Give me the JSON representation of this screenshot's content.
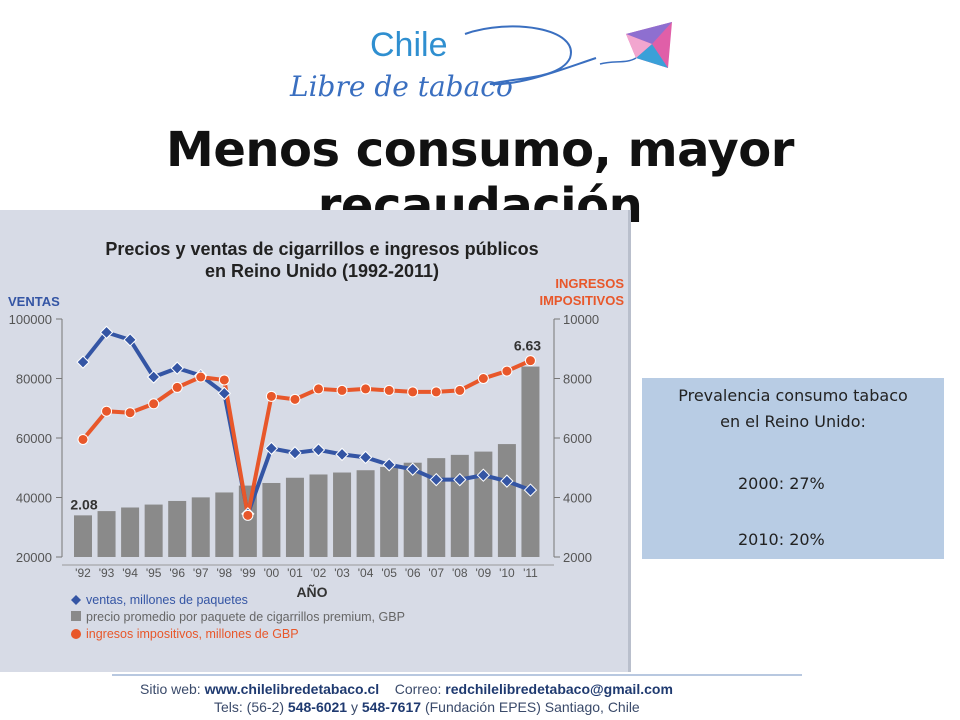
{
  "logo": {
    "line1": "Chile",
    "line2": "Libre de tabaco"
  },
  "title": "Menos consumo, mayor recaudación",
  "prevalence": {
    "title_line1": "Prevalencia consumo tabaco",
    "title_line2": "en el Reino Unido:",
    "row1": "2000:  27%",
    "row2": "2010:   20%"
  },
  "footer": {
    "web_label": "Sitio web:",
    "web": "www.chilelibredetabaco.cl",
    "mail_label": "Correo:",
    "mail": "redchilelibredetabaco@gmail.com",
    "tel_label": "Tels: (56-2)",
    "tel1": "548-6021",
    "tel_y": "y",
    "tel2": "548-7617",
    "org": "(Fundación EPES)  Santiago, Chile"
  },
  "colors": {
    "sales": "#3455a4",
    "tax": "#e8572a",
    "price_bars": "#8a8a8a",
    "panel": "#d7dbe6"
  },
  "chart_data": {
    "type": "bar",
    "title_line1": "Precios y ventas de cigarrillos e ingresos públicos",
    "title_line2": "en Reino Unido (1992-2011)",
    "xlabel": "AÑO",
    "ylabel_left": "VENTAS",
    "ylabel_right_line1": "INGRESOS",
    "ylabel_right_line2": "IMPOSITIVOS",
    "categories": [
      "'92",
      "'93",
      "'94",
      "'95",
      "'96",
      "'97",
      "'98",
      "'99",
      "'00",
      "'01",
      "'02",
      "'03",
      "'04",
      "'05",
      "'06",
      "'07",
      "'08",
      "'09",
      "'10",
      "'11"
    ],
    "left_axis": {
      "ylim": [
        20000,
        100000
      ],
      "ticks": [
        "20000",
        "40000",
        "60000",
        "80000",
        "100000"
      ]
    },
    "right_axis": {
      "ylim": [
        2000,
        10000
      ],
      "ticks": [
        "2000",
        "4000",
        "6000",
        "8000",
        "10000"
      ]
    },
    "grid": false,
    "legend_position": "bottom-left",
    "annotations": {
      "first_price": "2.08",
      "last_price": "6.63"
    },
    "series": [
      {
        "name": "ventas,  millones de paquetes",
        "kind": "line-diamond",
        "axis": "left",
        "values": [
          85500,
          95500,
          93000,
          80500,
          83500,
          81000,
          75000,
          34500,
          56500,
          55000,
          56000,
          54500,
          53500,
          51000,
          49500,
          46000,
          46000,
          47500,
          45500,
          42500
        ]
      },
      {
        "name": "precio promedio por paquete de cigarrillos premium, GBP",
        "kind": "bar",
        "axis": "price",
        "values": [
          2.08,
          2.21,
          2.32,
          2.41,
          2.52,
          2.63,
          2.78,
          2.99,
          3.07,
          3.23,
          3.33,
          3.39,
          3.46,
          3.56,
          3.69,
          3.83,
          3.93,
          4.03,
          4.26,
          6.63
        ]
      },
      {
        "name": "ingresos impositivos, millones de GBP",
        "kind": "line-dot",
        "axis": "right",
        "values": [
          5950,
          6900,
          6850,
          7150,
          7700,
          8050,
          7950,
          3400,
          7400,
          7300,
          7650,
          7600,
          7650,
          7600,
          7550,
          7550,
          7600,
          8000,
          8250,
          8600
        ]
      }
    ]
  }
}
